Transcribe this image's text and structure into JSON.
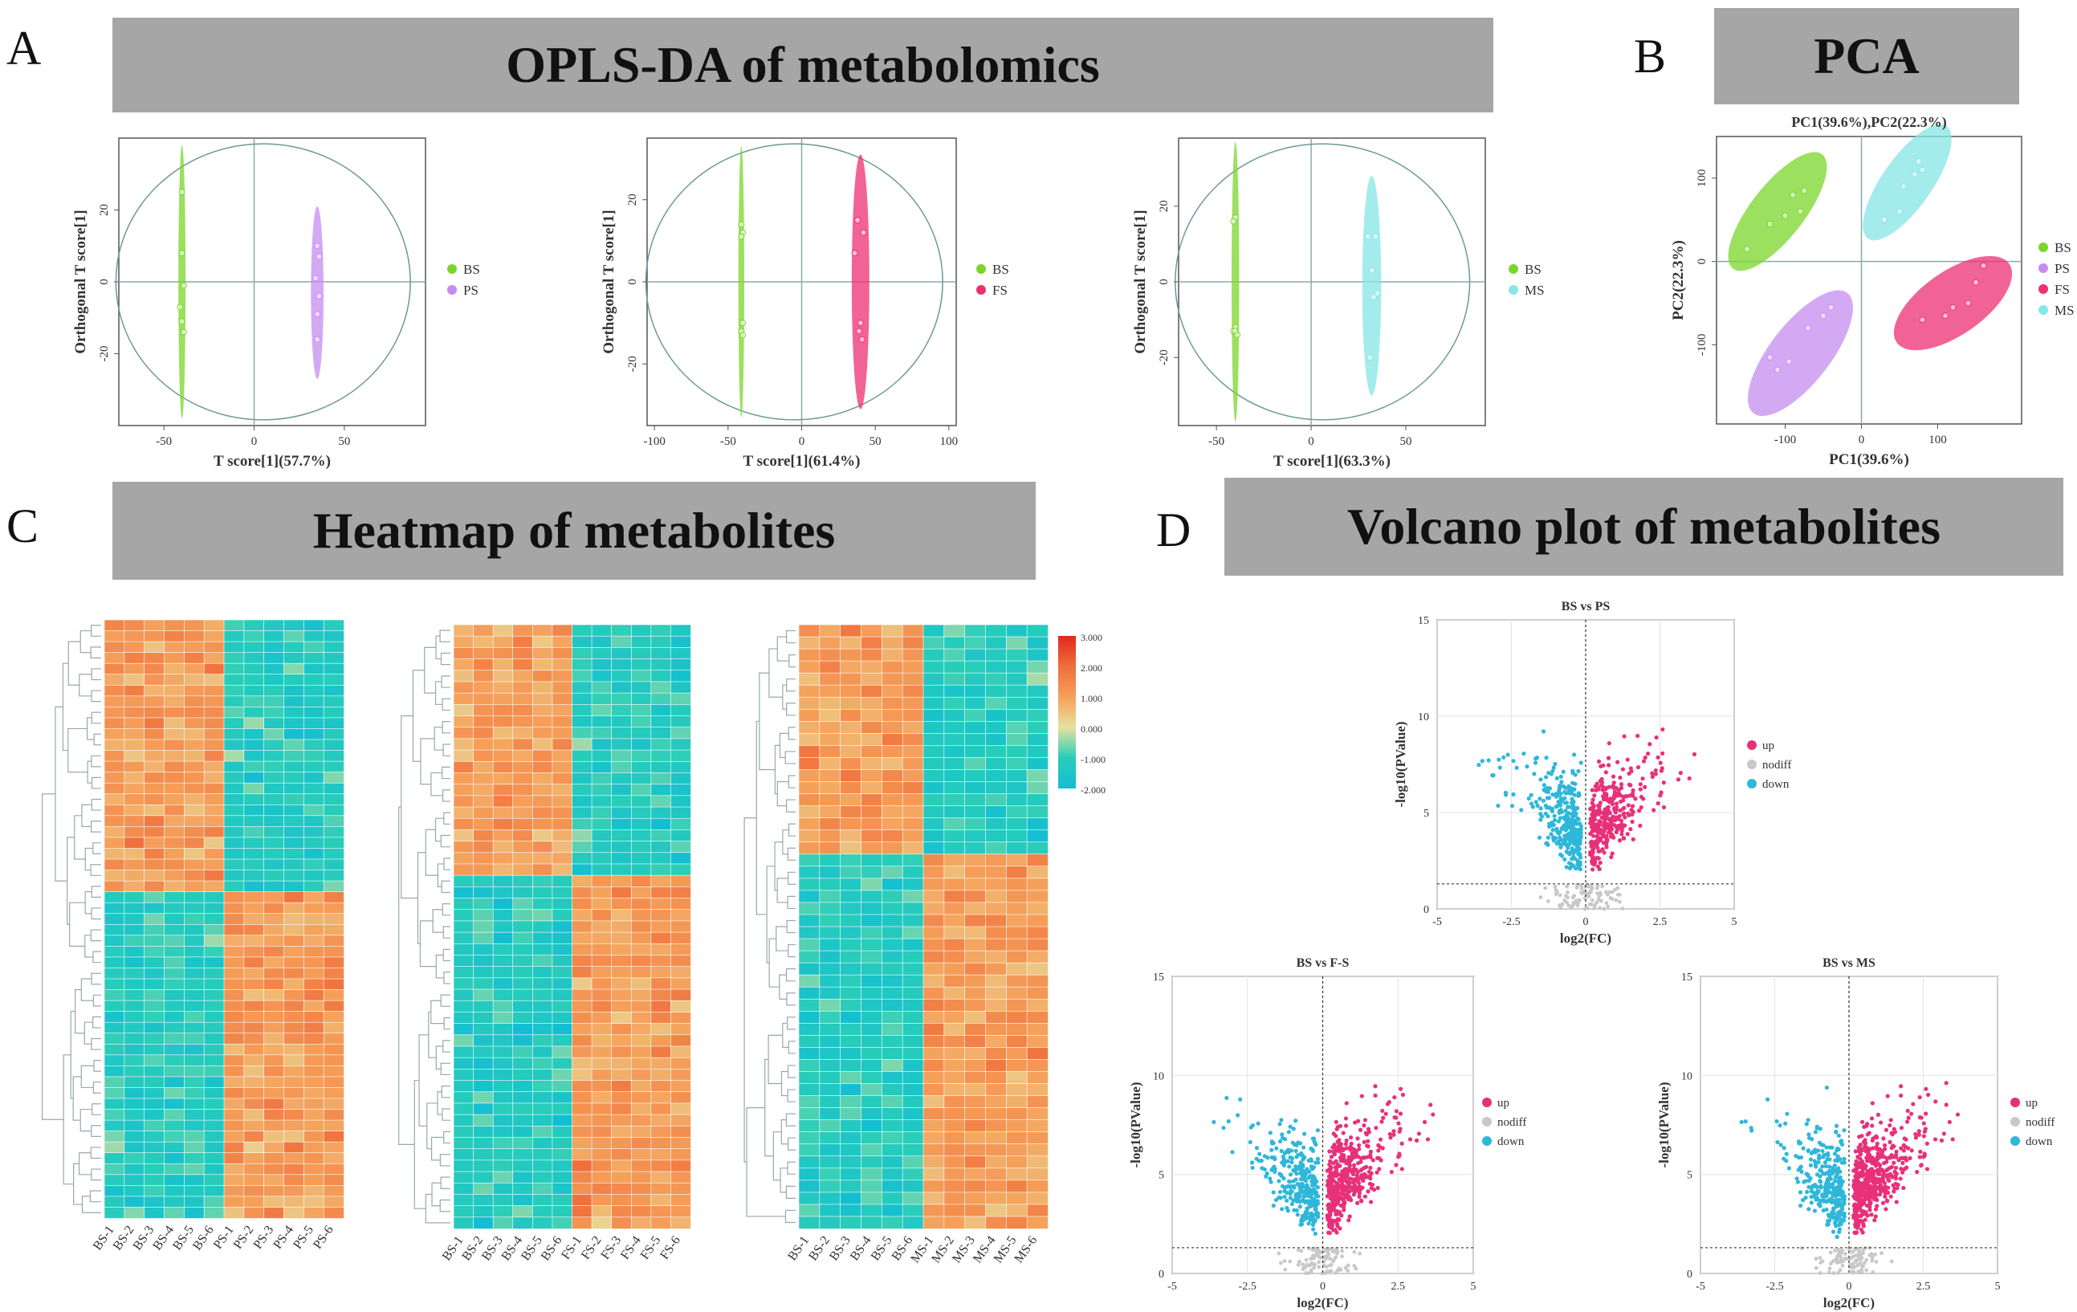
{
  "panels": {
    "A": {
      "letter": "A",
      "title": "OPLS-DA of metabolomics"
    },
    "B": {
      "letter": "B",
      "title": "PCA"
    },
    "C": {
      "letter": "C",
      "title": "Heatmap of metabolites"
    },
    "D": {
      "letter": "D",
      "title": "Volcano plot of metabolites"
    }
  },
  "colors": {
    "BS": "#7bd62a",
    "PS": "#c58cf0",
    "FS": "#ee2f72",
    "MS": "#86e6e6",
    "up": "#e8307a",
    "nodiff": "#c8c8c8",
    "down": "#2fb7d9"
  },
  "chart_data": [
    {
      "type": "scatter",
      "id": "opls1",
      "title": "",
      "xlabel": "T score[1](57.7%)",
      "ylabel": "Orthogonal T score[1]",
      "xticks": [
        -50,
        0,
        50
      ],
      "yticks": [
        -20,
        0,
        20
      ],
      "xlim": [
        -75,
        95
      ],
      "ylim": [
        -40,
        40
      ],
      "series": [
        {
          "name": "BS",
          "x": [
            -40,
            -40,
            -39,
            -41,
            -40,
            -39
          ],
          "y": [
            25,
            8,
            -1,
            -7,
            -11,
            -14
          ],
          "ellipse": {
            "cx": -40,
            "cy": 0,
            "rx": 2,
            "ry": 38
          }
        },
        {
          "name": "PS",
          "x": [
            35,
            36,
            34,
            36,
            35,
            35
          ],
          "y": [
            10,
            7,
            1,
            -4,
            -9,
            -16
          ],
          "ellipse": {
            "cx": 35,
            "cy": -3,
            "rx": 3.5,
            "ry": 24
          }
        }
      ],
      "legend": [
        "BS",
        "PS"
      ]
    },
    {
      "type": "scatter",
      "id": "opls2",
      "title": "",
      "xlabel": "T score[1](61.4%)",
      "ylabel": "Orthogonal T score[1]",
      "xticks": [
        -100,
        -50,
        0,
        50,
        100
      ],
      "yticks": [
        -20,
        0,
        20
      ],
      "xlim": [
        -105,
        105
      ],
      "ylim": [
        -35,
        35
      ],
      "series": [
        {
          "name": "BS",
          "x": [
            -41,
            -40,
            -41,
            -40,
            -41,
            -40
          ],
          "y": [
            14,
            12,
            11,
            -10,
            -12,
            -13
          ],
          "ellipse": {
            "cx": -41,
            "cy": 0,
            "rx": 2,
            "ry": 33
          }
        },
        {
          "name": "FS",
          "x": [
            38,
            42,
            36,
            40,
            39,
            41
          ],
          "y": [
            15,
            12,
            7,
            -10,
            -12,
            -14
          ],
          "ellipse": {
            "cx": 40,
            "cy": 0,
            "rx": 6,
            "ry": 31
          }
        }
      ],
      "legend": [
        "BS",
        "FS"
      ]
    },
    {
      "type": "scatter",
      "id": "opls3",
      "title": "",
      "xlabel": "T score[1](63.3%)",
      "ylabel": "Orthogonal T score[1]",
      "xticks": [
        -50,
        0,
        50
      ],
      "yticks": [
        -20,
        0,
        20
      ],
      "xlim": [
        -70,
        92
      ],
      "ylim": [
        -38,
        38
      ],
      "series": [
        {
          "name": "BS",
          "x": [
            -40,
            -41,
            -40,
            -41,
            -40,
            -39
          ],
          "y": [
            17,
            16,
            -12,
            -13,
            -13,
            -14
          ],
          "ellipse": {
            "cx": -40,
            "cy": 0,
            "rx": 2,
            "ry": 37
          }
        },
        {
          "name": "MS",
          "x": [
            30,
            34,
            32,
            35,
            33,
            31
          ],
          "y": [
            12,
            12,
            3,
            -3,
            -4,
            -20
          ],
          "ellipse": {
            "cx": 32,
            "cy": -1,
            "rx": 5,
            "ry": 29
          }
        }
      ],
      "legend": [
        "BS",
        "MS"
      ]
    },
    {
      "type": "scatter",
      "id": "pca",
      "title": "PC1(39.6%),PC2(22.3%)",
      "xlabel": "PC1(39.6%)",
      "ylabel": "PC2(22.3%)",
      "xticks": [
        -100,
        0,
        100
      ],
      "yticks": [
        -100,
        0,
        100
      ],
      "xlim": [
        -190,
        210
      ],
      "ylim": [
        -195,
        150
      ],
      "series": [
        {
          "name": "BS",
          "x": [
            -150,
            -120,
            -100,
            -80,
            -90,
            -75
          ],
          "y": [
            15,
            45,
            55,
            60,
            80,
            85
          ],
          "ellipse": {
            "cx": -110,
            "cy": 60,
            "rx": 95,
            "ry": 32,
            "angle": -52
          }
        },
        {
          "name": "PS",
          "x": [
            -120,
            -110,
            -95,
            -70,
            -50,
            -40
          ],
          "y": [
            -115,
            -130,
            -120,
            -80,
            -65,
            -55
          ],
          "ellipse": {
            "cx": -80,
            "cy": -110,
            "rx": 100,
            "ry": 36,
            "angle": -52
          }
        },
        {
          "name": "FS",
          "x": [
            80,
            110,
            120,
            140,
            150,
            160
          ],
          "y": [
            -70,
            -65,
            -55,
            -50,
            -25,
            -5
          ],
          "ellipse": {
            "cx": 120,
            "cy": -50,
            "rx": 90,
            "ry": 38,
            "angle": -35
          }
        },
        {
          "name": "MS",
          "x": [
            30,
            50,
            55,
            70,
            80,
            75
          ],
          "y": [
            50,
            60,
            90,
            105,
            110,
            120
          ],
          "ellipse": {
            "cx": 60,
            "cy": 95,
            "rx": 90,
            "ry": 30,
            "angle": -55
          }
        }
      ],
      "legend": [
        "BS",
        "PS",
        "FS",
        "MS"
      ]
    },
    {
      "type": "heatmap",
      "id": "hm1",
      "columns": [
        "BS-1",
        "BS-2",
        "BS-3",
        "BS-4",
        "BS-5",
        "BS-6",
        "PS-1",
        "PS-2",
        "PS-3",
        "PS-4",
        "PS-5",
        "PS-6"
      ],
      "rows": 55,
      "split_row": 25,
      "split_col": 6
    },
    {
      "type": "heatmap",
      "id": "hm2",
      "columns": [
        "BS-1",
        "BS-2",
        "BS-3",
        "BS-4",
        "BS-5",
        "BS-6",
        "FS-1",
        "FS-2",
        "FS-3",
        "FS-4",
        "FS-5",
        "FS-6"
      ],
      "rows": 53,
      "split_row": 22,
      "split_col": 6
    },
    {
      "type": "heatmap",
      "id": "hm3",
      "columns": [
        "BS-1",
        "BS-2",
        "BS-3",
        "BS-4",
        "BS-5",
        "BS-6",
        "MS-1",
        "MS-2",
        "MS-3",
        "MS-4",
        "MS-5",
        "MS-6"
      ],
      "rows": 50,
      "split_row": 19,
      "split_col": 6
    },
    {
      "type": "colorbar",
      "id": "scale",
      "ticks": [
        "3.000",
        "2.000",
        "1.000",
        "0.000",
        "-1.000",
        "-2.000"
      ]
    },
    {
      "type": "scatter",
      "id": "volc1",
      "title": "BS vs PS",
      "xlabel": "log2(FC)",
      "ylabel": "-log10(PValue)",
      "xticks": [
        "-5",
        "-2.5",
        "0",
        "2.5",
        "5"
      ],
      "yticks": [
        "0",
        "5",
        "10",
        "15"
      ],
      "xlim": [
        -5,
        5
      ],
      "ylim": [
        0,
        15
      ],
      "legend": [
        "up",
        "nodiff",
        "down"
      ],
      "threshold": 1.3
    },
    {
      "type": "scatter",
      "id": "volc2",
      "title": "BS vs FS",
      "title_visible": "BS vs F̶S",
      "xlabel": "log2(FC)",
      "ylabel": "-log10(PValue)",
      "xticks": [
        "-5",
        "-2.5",
        "0",
        "2.5",
        "5"
      ],
      "yticks": [
        "0",
        "5",
        "10",
        "15"
      ],
      "xlim": [
        -5,
        5
      ],
      "ylim": [
        0,
        15
      ],
      "legend": [
        "up",
        "nodiff",
        "down"
      ],
      "threshold": 1.3
    },
    {
      "type": "scatter",
      "id": "volc3",
      "title": "BS vs MS",
      "xlabel": "log2(FC)",
      "ylabel": "-log10(PValue)",
      "xticks": [
        "-5",
        "-2.5",
        "0",
        "2.5",
        "5"
      ],
      "yticks": [
        "0",
        "5",
        "10",
        "15"
      ],
      "xlim": [
        -5,
        5
      ],
      "ylim": [
        0,
        15
      ],
      "legend": [
        "up",
        "nodiff",
        "down"
      ],
      "threshold": 1.3
    }
  ],
  "labels": {
    "volc1_title": "BS vs PS",
    "volc2_title": "BS vs F-S",
    "volc3_title": "BS vs MS",
    "scale_ticks": [
      "3.000",
      "2.000",
      "1.000",
      "0.000",
      "-1.000",
      "-2.000"
    ]
  }
}
